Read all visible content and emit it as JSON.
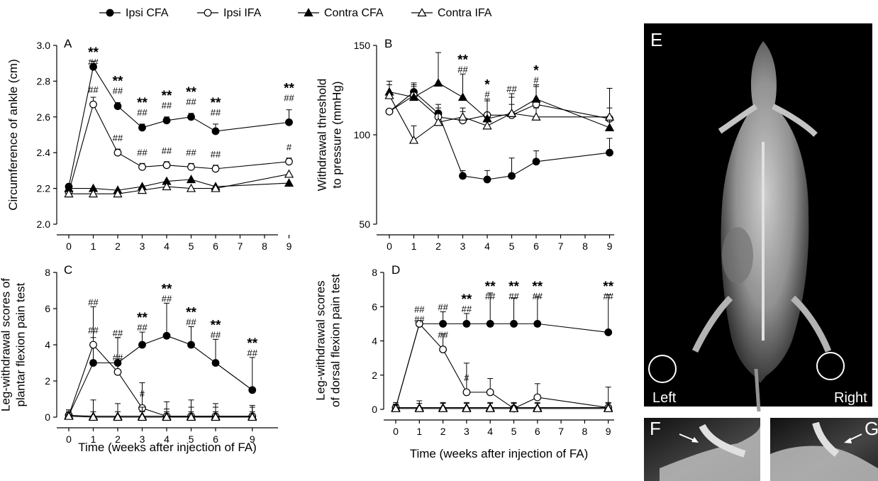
{
  "legend": {
    "items": [
      {
        "label": "Ipsi CFA",
        "marker": "circle",
        "filled": true
      },
      {
        "label": "Ipsi IFA",
        "marker": "circle",
        "filled": false
      },
      {
        "label": "Contra CFA",
        "marker": "triangle",
        "filled": true
      },
      {
        "label": "Contra IFA",
        "marker": "triangle",
        "filled": false
      }
    ]
  },
  "chart_data": [
    {
      "panel": "A",
      "type": "line",
      "xlabel": "",
      "ylabel": "Circumference of ankle (cm)",
      "x": [
        0,
        1,
        2,
        3,
        4,
        5,
        6,
        9
      ],
      "xticks": [
        "0",
        "1",
        "2",
        "3",
        "4",
        "5",
        "6",
        "7",
        "8",
        "9"
      ],
      "ylim": [
        2.0,
        3.0
      ],
      "yticks": [
        "2.0",
        "2.2",
        "2.4",
        "2.6",
        "2.8",
        "3.0"
      ],
      "series": [
        {
          "name": "Ipsi CFA",
          "values": [
            2.21,
            2.88,
            2.66,
            2.54,
            2.58,
            2.6,
            2.52,
            2.57
          ],
          "err": [
            0,
            0.03,
            0.02,
            0.02,
            0.02,
            0.02,
            0.04,
            0.07
          ]
        },
        {
          "name": "Ipsi IFA",
          "values": [
            2.18,
            2.67,
            2.4,
            2.32,
            2.33,
            2.32,
            2.31,
            2.35
          ],
          "err": [
            0,
            0.04,
            0.02,
            0.02,
            0.02,
            0.02,
            0.02,
            0.02
          ]
        },
        {
          "name": "Contra CFA",
          "values": [
            2.2,
            2.2,
            2.19,
            2.21,
            2.24,
            2.25,
            2.21,
            2.23
          ],
          "err": [
            0,
            0,
            0,
            0,
            0,
            0,
            0,
            0
          ]
        },
        {
          "name": "Contra IFA",
          "values": [
            2.17,
            2.17,
            2.17,
            2.19,
            2.21,
            2.2,
            2.2,
            2.28
          ],
          "err": [
            0,
            0,
            0,
            0,
            0,
            0,
            0,
            0
          ]
        }
      ],
      "annotations": [
        {
          "x": 1,
          "stars": "**",
          "hash": "##"
        },
        {
          "x": 2,
          "stars": "**",
          "hash": "##"
        },
        {
          "x": 3,
          "stars": "**",
          "hash": "##"
        },
        {
          "x": 4,
          "stars": "**",
          "hash": "##"
        },
        {
          "x": 5,
          "stars": "**",
          "hash": "##"
        },
        {
          "x": 6,
          "stars": "**",
          "hash": "##"
        },
        {
          "x": 9,
          "stars": "**",
          "hash": "##"
        }
      ],
      "lower_annotations": [
        {
          "x": 1,
          "hash": "##"
        },
        {
          "x": 2,
          "hash": "##"
        },
        {
          "x": 3,
          "hash": "##"
        },
        {
          "x": 4,
          "hash": "##"
        },
        {
          "x": 5,
          "hash": "##"
        },
        {
          "x": 6,
          "hash": "##"
        },
        {
          "x": 9,
          "hash": "#"
        }
      ]
    },
    {
      "panel": "B",
      "type": "line",
      "xlabel": "",
      "ylabel": "Withdrawal threshold to pressure (mmHg)",
      "ylabel_lines": [
        "Withdrawal threshold",
        "to pressure (mmHg)"
      ],
      "x": [
        0,
        1,
        2,
        3,
        4,
        5,
        6,
        9
      ],
      "xticks": [
        "0",
        "1",
        "2",
        "3",
        "4",
        "5",
        "6",
        "7",
        "8",
        "9"
      ],
      "ylim": [
        50,
        150
      ],
      "yticks": [
        "50",
        "100",
        "150"
      ],
      "series": [
        {
          "name": "Ipsi CFA",
          "values": [
            113,
            124,
            112,
            77,
            75,
            77,
            85,
            90
          ],
          "err": [
            0,
            5,
            5,
            3,
            5,
            10,
            6,
            8
          ]
        },
        {
          "name": "Ipsi IFA",
          "values": [
            113,
            122,
            110,
            108,
            111,
            111,
            117,
            109
          ],
          "err": [
            0,
            5,
            5,
            5,
            8,
            10,
            10,
            17
          ]
        },
        {
          "name": "Contra CFA",
          "values": [
            124,
            121,
            129,
            121,
            109,
            112,
            120,
            104
          ],
          "err": [
            6,
            7,
            17,
            13,
            11,
            11,
            8,
            22
          ]
        },
        {
          "name": "Contra IFA",
          "values": [
            122,
            97,
            107,
            110,
            105,
            112,
            110,
            110
          ],
          "err": [
            6,
            8,
            5,
            5,
            5,
            5,
            5,
            5
          ]
        }
      ],
      "annotations": [
        {
          "x": 3,
          "stars": "**",
          "hash": "##"
        },
        {
          "x": 4,
          "stars": "*",
          "hash": "#"
        },
        {
          "x": 5,
          "stars": "",
          "hash": "##"
        },
        {
          "x": 6,
          "stars": "*",
          "hash": "#"
        }
      ]
    },
    {
      "panel": "C",
      "type": "line",
      "xlabel": "Time (weeks after injection of FA)",
      "ylabel": "Leg-withdrawal scores of plantar flexion pain test",
      "ylabel_lines": [
        "Leg-withdrawal scores of",
        "plantar flexion pain test"
      ],
      "x": [
        0,
        1,
        2,
        3,
        4,
        5,
        6,
        9
      ],
      "xticks": [
        "0",
        "1",
        "2",
        "3",
        "4",
        "5",
        "6",
        "9"
      ],
      "ylim": [
        0,
        8
      ],
      "yticks": [
        "0",
        "2",
        "4",
        "6",
        "8"
      ],
      "series": [
        {
          "name": "Ipsi CFA",
          "values": [
            0.1,
            3.0,
            3.0,
            4.0,
            4.5,
            4.0,
            3.0,
            1.5
          ],
          "err": [
            0.3,
            1.4,
            1.4,
            0.7,
            1.8,
            1.0,
            1.3,
            1.8
          ]
        },
        {
          "name": "Ipsi IFA",
          "values": [
            0.1,
            4.0,
            2.5,
            0.5,
            0.05,
            0.05,
            0.05,
            0.05
          ],
          "err": [
            0.3,
            2.1,
            1.9,
            1.4,
            0.8,
            0.9,
            0.7,
            0.6
          ]
        },
        {
          "name": "Contra CFA",
          "values": [
            0.1,
            0.05,
            0.05,
            0.05,
            0.05,
            0.05,
            0.05,
            0.05
          ],
          "err": [
            0.2,
            0.9,
            0.7,
            0.5,
            0.4,
            0.5,
            0.5,
            0.5
          ]
        },
        {
          "name": "Contra IFA",
          "values": [
            0.05,
            0.0,
            0.0,
            0.0,
            0.0,
            0.0,
            0.0,
            0.0
          ],
          "err": [
            0.1,
            0.3,
            0.3,
            0.3,
            0.3,
            0.3,
            0.3,
            0.3
          ]
        }
      ],
      "annotations": [
        {
          "x": 1,
          "stars": "",
          "hash": "##"
        },
        {
          "x": 2,
          "stars": "",
          "hash": "##"
        },
        {
          "x": 3,
          "stars": "**",
          "hash": "##"
        },
        {
          "x": 4,
          "stars": "**",
          "hash": "##"
        },
        {
          "x": 5,
          "stars": "**",
          "hash": "##"
        },
        {
          "x": 6,
          "stars": "**",
          "hash": "##"
        },
        {
          "x": 9,
          "stars": "**",
          "hash": "##"
        }
      ],
      "lower_annotations": [
        {
          "x": 1,
          "hash": "##"
        },
        {
          "x": 2,
          "hash": "##"
        },
        {
          "x": 3,
          "hash": "#"
        }
      ]
    },
    {
      "panel": "D",
      "type": "line",
      "xlabel": "Time (weeks after injection of FA)",
      "ylabel": "Leg-withdrawal scores of dorsal flexion pain test",
      "ylabel_lines": [
        "Leg-withdrawal scores",
        "of dorsal flexion pain test"
      ],
      "x": [
        0,
        1,
        2,
        3,
        4,
        5,
        6,
        9
      ],
      "xticks": [
        "0",
        "1",
        "2",
        "3",
        "4",
        "5",
        "6",
        "7",
        "8",
        "9"
      ],
      "ylim": [
        0,
        8
      ],
      "yticks": [
        "0",
        "2",
        "4",
        "6",
        "8"
      ],
      "series": [
        {
          "name": "Ipsi CFA",
          "values": [
            0.1,
            5.0,
            5.0,
            5.0,
            5.0,
            5.0,
            5.0,
            4.5
          ],
          "err": [
            0.2,
            0,
            0.7,
            0.6,
            1.8,
            1.5,
            1.6,
            2.2
          ]
        },
        {
          "name": "Ipsi IFA",
          "values": [
            0.1,
            5.0,
            3.5,
            1.0,
            1.0,
            0.05,
            0.7,
            0.1
          ],
          "err": [
            0.3,
            0,
            0.9,
            1.7,
            0.8,
            0.3,
            0.8,
            1.2
          ]
        },
        {
          "name": "Contra CFA",
          "values": [
            0.1,
            0.1,
            0.1,
            0.1,
            0.1,
            0.1,
            0.1,
            0.1
          ],
          "err": [
            0.2,
            0.4,
            0.3,
            0.3,
            0.3,
            0.3,
            0.3,
            0.3
          ]
        },
        {
          "name": "Contra IFA",
          "values": [
            0.05,
            0.05,
            0.05,
            0.05,
            0.05,
            0.05,
            0.05,
            0.05
          ],
          "err": [
            0.2,
            0.3,
            0.3,
            0.3,
            0.3,
            0.3,
            0.3,
            0.3
          ]
        }
      ],
      "annotations": [
        {
          "x": 1,
          "stars": "",
          "hash": "##"
        },
        {
          "x": 2,
          "stars": "",
          "hash": "##"
        },
        {
          "x": 3,
          "stars": "**",
          "hash": "##"
        },
        {
          "x": 4,
          "stars": "**",
          "hash": "##"
        },
        {
          "x": 5,
          "stars": "**",
          "hash": "##"
        },
        {
          "x": 6,
          "stars": "**",
          "hash": "##"
        },
        {
          "x": 9,
          "stars": "**",
          "hash": "##"
        }
      ],
      "lower_annotations": [
        {
          "x": 1,
          "hash": "##"
        },
        {
          "x": 2,
          "hash": "##"
        },
        {
          "x": 3,
          "hash": "#"
        }
      ]
    }
  ],
  "xray": {
    "label": "E",
    "left_label": "Left",
    "right_label": "Right",
    "insets": [
      {
        "label": "F"
      },
      {
        "label": "G"
      }
    ]
  }
}
